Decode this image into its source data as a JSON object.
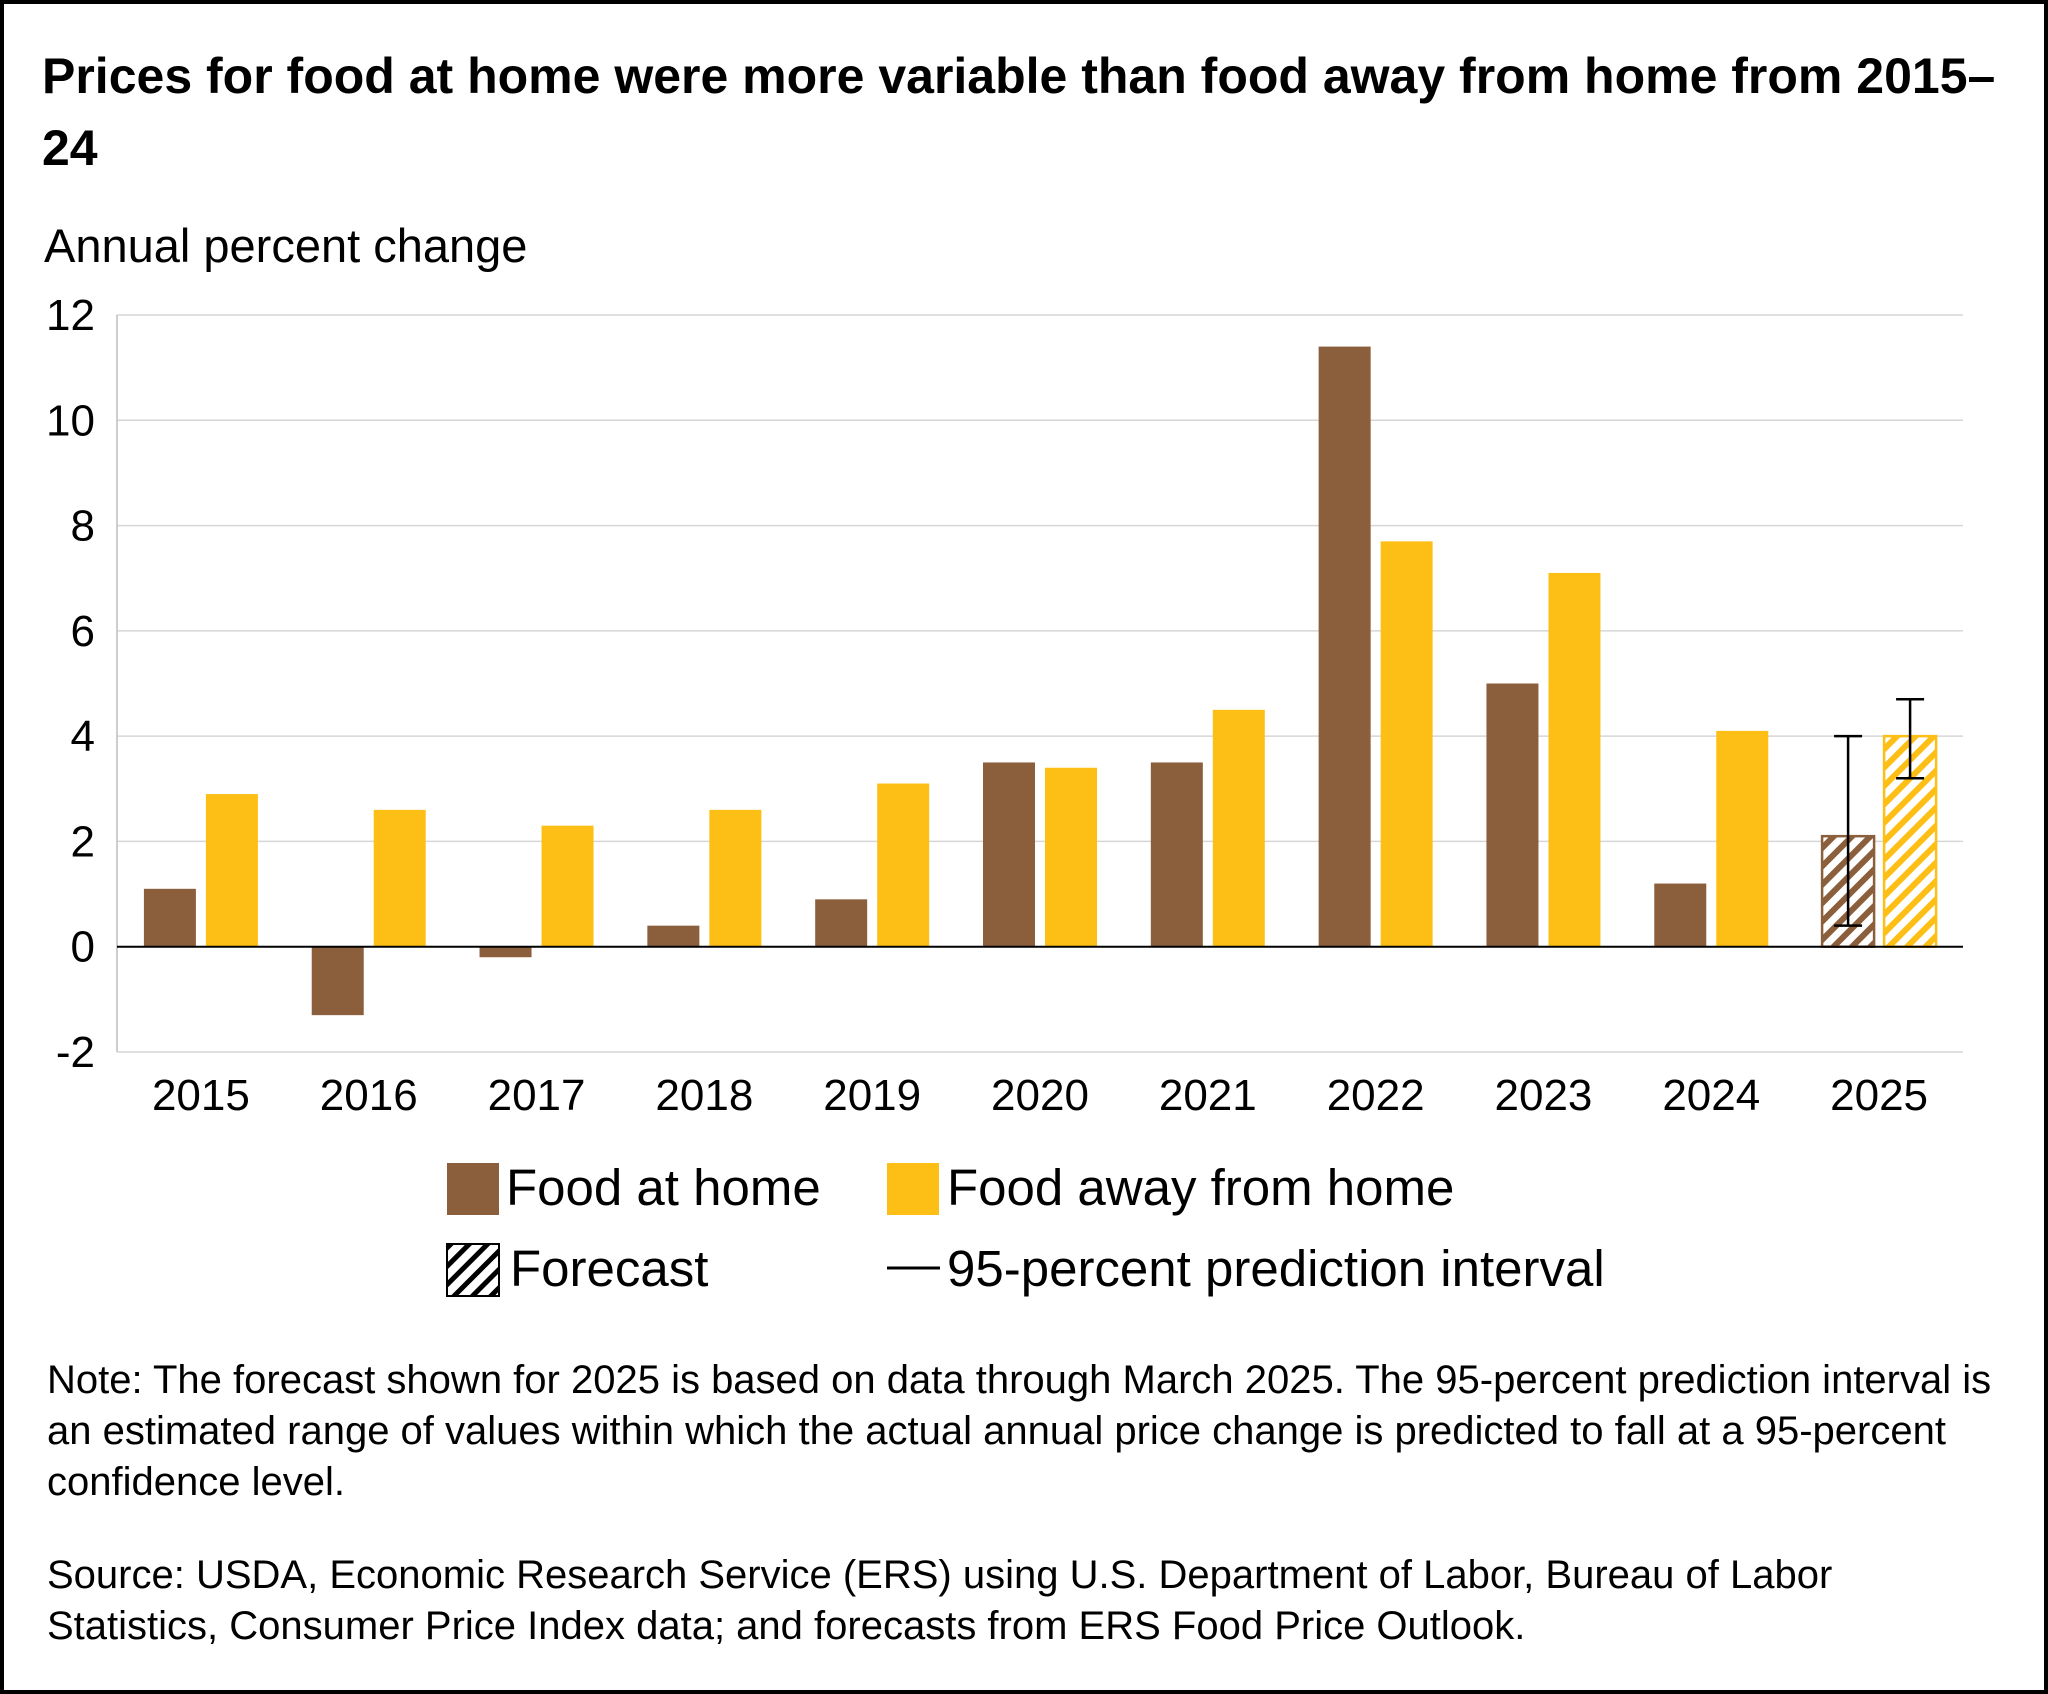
{
  "chart_data": {
    "type": "bar",
    "title": "Prices for food at home were more variable than food away from home from 2015–24",
    "ylabel": "Annual percent change",
    "xlabel": "",
    "ylim": [
      -2,
      12
    ],
    "yticks": [
      "12",
      "10",
      "8",
      "6",
      "4",
      "2",
      "0",
      "-2"
    ],
    "ytick_values": [
      12,
      10,
      8,
      6,
      4,
      2,
      0,
      -2
    ],
    "categories": [
      "2015",
      "2016",
      "2017",
      "2018",
      "2019",
      "2020",
      "2021",
      "2022",
      "2023",
      "2024",
      "2025"
    ],
    "series": [
      {
        "name": "Food at home",
        "color": "#8b5e3c",
        "values": [
          1.1,
          -1.3,
          -0.2,
          0.4,
          0.9,
          3.5,
          3.5,
          11.4,
          5.0,
          1.2,
          2.1
        ]
      },
      {
        "name": "Food away from home",
        "color": "#fdbf16",
        "values": [
          2.9,
          2.6,
          2.3,
          2.6,
          3.1,
          3.4,
          4.5,
          7.7,
          7.1,
          4.1,
          4.0
        ]
      }
    ],
    "forecast_category": "2025",
    "prediction_intervals": {
      "Food at home": [
        0.4,
        4.0
      ],
      "Food away from home": [
        3.2,
        4.7
      ]
    },
    "grid": true,
    "legend": {
      "position": "bottom-center",
      "items": [
        {
          "label": "Food at home",
          "kind": "swatch",
          "color": "#8b5e3c"
        },
        {
          "label": "Food away from home",
          "kind": "swatch",
          "color": "#fdbf16"
        },
        {
          "label": "Forecast",
          "kind": "hatch"
        },
        {
          "label": "95-percent prediction interval",
          "kind": "line"
        }
      ]
    }
  },
  "note": "Note: The forecast shown for 2025 is based on data through March 2025. The 95-percent prediction interval is an estimated range of values within which the actual annual price change is predicted to fall at a 95-percent confidence level.",
  "source": "Source: USDA, Economic Research Service (ERS) using U.S. Department of Labor, Bureau of Labor Statistics, Consumer Price Index data; and forecasts from ERS Food Price Outlook."
}
